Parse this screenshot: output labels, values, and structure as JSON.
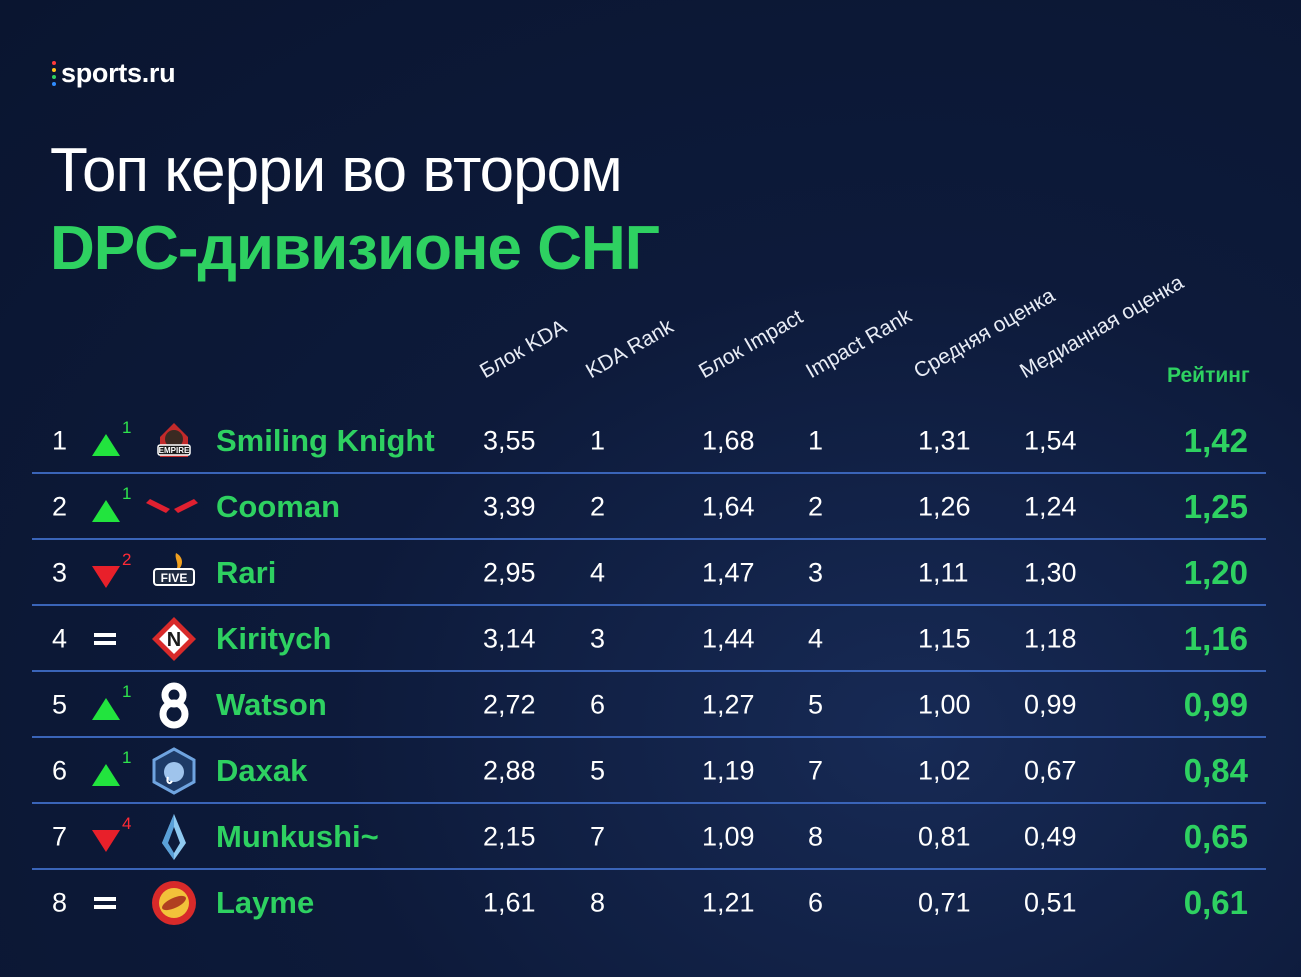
{
  "brand": {
    "name": "sports.ru",
    "dot_colors": [
      "#ff3b3b",
      "#ffc21a",
      "#2ed161",
      "#2f8cff"
    ]
  },
  "title": {
    "line1": "Топ керри во втором",
    "line2": "DPC-дивизионе СНГ"
  },
  "colors": {
    "accent": "#2ed161",
    "up": "#22e43e",
    "down": "#e8202a",
    "separator": "#3a64b8"
  },
  "chart_data": {
    "type": "table",
    "columns": [
      "Блок KDA",
      "KDA Rank",
      "Блок Impact",
      "Impact Rank",
      "Средняя оценка",
      "Медианная оценка",
      "Рейтинг"
    ],
    "rows": [
      {
        "rank": "1",
        "trend": "up",
        "change": "1",
        "team_icon": "empire-logo-icon",
        "player": "Smiling Knight",
        "values": [
          "3,55",
          "1",
          "1,68",
          "1",
          "1,31",
          "1,54"
        ],
        "rating": "1,42"
      },
      {
        "rank": "2",
        "trend": "up",
        "change": "1",
        "team_icon": "cooman-team-logo-icon",
        "player": "Cooman",
        "values": [
          "3,39",
          "2",
          "1,64",
          "2",
          "1,26",
          "1,24"
        ],
        "rating": "1,25"
      },
      {
        "rank": "3",
        "trend": "down",
        "change": "2",
        "team_icon": "fantastic-five-logo-icon",
        "player": "Rari",
        "values": [
          "2,95",
          "4",
          "1,47",
          "3",
          "1,11",
          "1,30"
        ],
        "rating": "1,20"
      },
      {
        "rank": "4",
        "trend": "same",
        "change": "",
        "team_icon": "nemiga-logo-icon",
        "player": "Kiritych",
        "values": [
          "3,14",
          "3",
          "1,44",
          "4",
          "1,15",
          "1,18"
        ],
        "rating": "1,16"
      },
      {
        "rank": "5",
        "trend": "up",
        "change": "1",
        "team_icon": "b8-logo-icon",
        "player": "Watson",
        "values": [
          "2,72",
          "6",
          "1,27",
          "5",
          "1,00",
          "0,99"
        ],
        "rating": "0,99"
      },
      {
        "rank": "6",
        "trend": "up",
        "change": "1",
        "team_icon": "mammoth-logo-icon",
        "player": "Daxak",
        "values": [
          "2,88",
          "5",
          "1,19",
          "7",
          "1,02",
          "0,67"
        ],
        "rating": "0,84"
      },
      {
        "rank": "7",
        "trend": "down",
        "change": "4",
        "team_icon": "crystal-logo-icon",
        "player": "Munkushi~",
        "values": [
          "2,15",
          "7",
          "1,09",
          "8",
          "0,81",
          "0,49"
        ],
        "rating": "0,65"
      },
      {
        "rank": "8",
        "trend": "same",
        "change": "",
        "team_icon": "hotdog-logo-icon",
        "player": "Layme",
        "values": [
          "1,61",
          "8",
          "1,21",
          "6",
          "0,71",
          "0,51"
        ],
        "rating": "0,61"
      }
    ]
  }
}
